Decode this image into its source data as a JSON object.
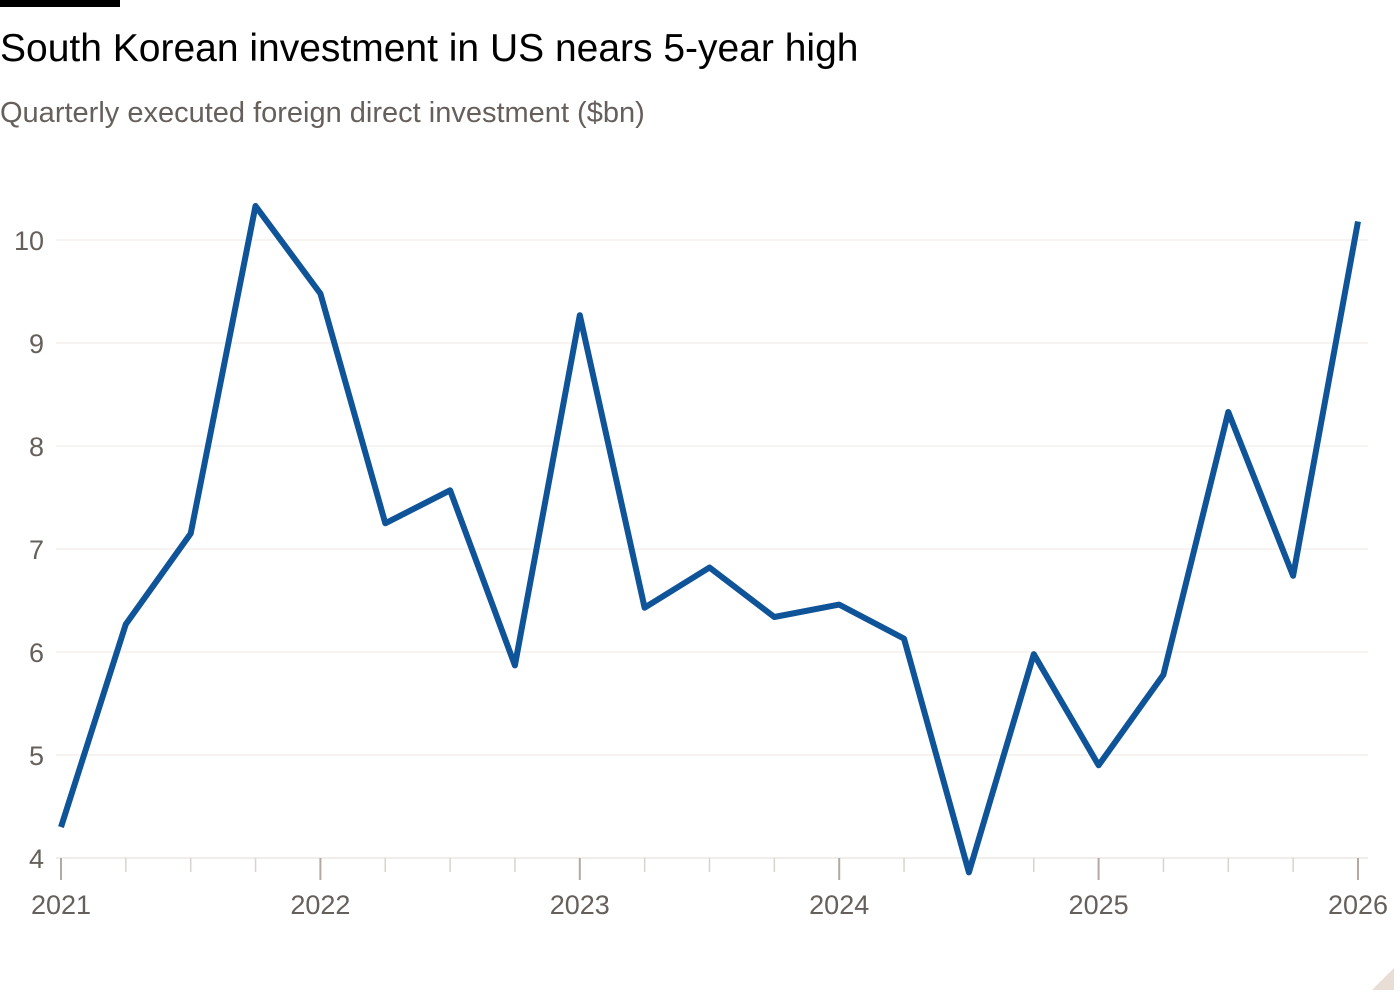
{
  "header": {
    "title": "South Korean investment in US nears 5-year high",
    "subtitle": "Quarterly executed foreign direct investment ($bn)"
  },
  "colors": {
    "line": "#0f5499",
    "gridline": "#ece7e3",
    "tick_text": "#66605c",
    "axis": "#d9d3cf"
  },
  "chart_data": {
    "type": "line",
    "title": "South Korean investment in US nears 5-year high",
    "subtitle": "Quarterly executed foreign direct investment ($bn)",
    "xlabel": "",
    "ylabel": "",
    "x": [
      "2021-Q1",
      "2021-Q2",
      "2021-Q3",
      "2021-Q4",
      "2022-Q1",
      "2022-Q2",
      "2022-Q3",
      "2022-Q4",
      "2023-Q1",
      "2023-Q2",
      "2023-Q3",
      "2023-Q4",
      "2024-Q1",
      "2024-Q2",
      "2024-Q3",
      "2024-Q4",
      "2025-Q1",
      "2025-Q2",
      "2025-Q3",
      "2025-Q4",
      "2026-Q1"
    ],
    "series": [
      {
        "values": [
          4.3,
          6.27,
          7.15,
          10.33,
          9.48,
          7.25,
          7.57,
          5.87,
          9.27,
          6.43,
          6.82,
          6.34,
          6.46,
          6.13,
          3.86,
          5.98,
          4.9,
          5.78,
          8.33,
          6.74,
          10.18
        ]
      }
    ],
    "x_tick_labels": [
      "2021",
      "2022",
      "2023",
      "2024",
      "2025",
      "2026"
    ],
    "y_ticks": [
      4,
      5,
      6,
      7,
      8,
      9,
      10
    ],
    "ylim": [
      4,
      10
    ],
    "grid": true,
    "legend": "none"
  }
}
